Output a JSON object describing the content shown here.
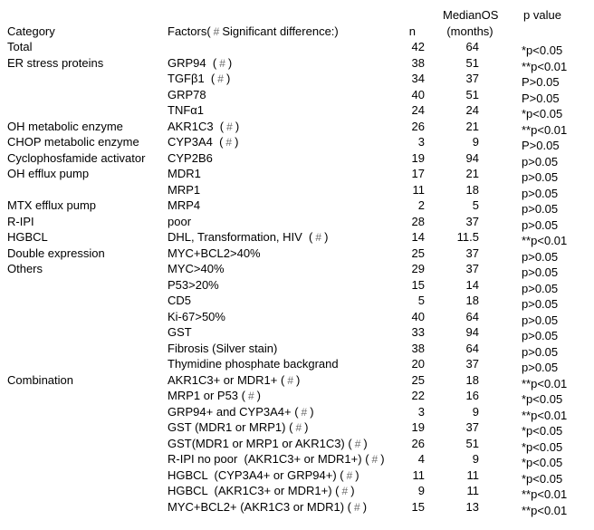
{
  "colors": {
    "background": "#ffffff",
    "text": "#000000",
    "hash_mark": "#6b6b6b"
  },
  "header": {
    "category": "Category",
    "factors": "Factors(#Significant difference:)",
    "n": "n",
    "median_line1": "MedianOS",
    "median_line2": "(months)",
    "p_value": "p value"
  },
  "rows": [
    {
      "category": "Total",
      "factors": "",
      "n": "42",
      "median": "64",
      "p": "*p<0.05"
    },
    {
      "category": "ER stress proteins",
      "factors": "GRP94  (#)",
      "n": "38",
      "median": "51",
      "p": "**p<0.01"
    },
    {
      "category": "",
      "factors": "TGFβ1  (#)",
      "n": "34",
      "median": "37",
      "p": "P>0.05"
    },
    {
      "category": "",
      "factors": "GRP78",
      "n": "40",
      "median": "51",
      "p": "P>0.05"
    },
    {
      "category": "",
      "factors": "TNFα1",
      "n": "24",
      "median": "24",
      "p": "*p<0.05"
    },
    {
      "category": "OH metabolic enzyme",
      "factors": "AKR1C3  (#)",
      "n": "26",
      "median": "21",
      "p": "**p<0.01"
    },
    {
      "category": "CHOP metabolic enzyme",
      "factors": "CYP3A4  (#)",
      "n": "3",
      "median": "9",
      "p": "P>0.05"
    },
    {
      "category": "Cyclophosfamide activator",
      "factors": "CYP2B6",
      "n": "19",
      "median": "94",
      "p": "p>0.05"
    },
    {
      "category": "OH efflux pump",
      "factors": "MDR1",
      "n": "17",
      "median": "21",
      "p": "p>0.05"
    },
    {
      "category": "",
      "factors": "MRP1",
      "n": "11",
      "median": "18",
      "p": "p>0.05"
    },
    {
      "category": "MTX efflux pump",
      "factors": "MRP4",
      "n": "2",
      "median": "5",
      "p": "p>0.05"
    },
    {
      "category": "R-IPI",
      "factors": "poor",
      "n": "28",
      "median": "37",
      "p": "p>0.05"
    },
    {
      "category": "HGBCL",
      "factors": "DHL, Transformation, HIV  (#)",
      "n": "14",
      "median": "11.5",
      "p": "**p<0.01"
    },
    {
      "category": "Double expression",
      "factors": "MYC+BCL2>40%",
      "n": "25",
      "median": "37",
      "p": "p>0.05"
    },
    {
      "category": "Others",
      "factors": "MYC>40%",
      "n": "29",
      "median": "37",
      "p": "p>0.05"
    },
    {
      "category": "",
      "factors": "P53>20%",
      "n": "15",
      "median": "14",
      "p": "p>0.05"
    },
    {
      "category": "",
      "factors": "CD5",
      "n": "5",
      "median": "18",
      "p": "p>0.05"
    },
    {
      "category": "",
      "factors": "Ki-67>50%",
      "n": "40",
      "median": "64",
      "p": "p>0.05"
    },
    {
      "category": "",
      "factors": "GST",
      "n": "33",
      "median": "94",
      "p": "p>0.05"
    },
    {
      "category": "",
      "factors": "Fibrosis (Silver stain)",
      "n": "38",
      "median": "64",
      "p": "p>0.05"
    },
    {
      "category": "",
      "factors": "Thymidine phosphate backgrand",
      "n": "20",
      "median": "37",
      "p": "p>0.05"
    },
    {
      "category": "Combination",
      "factors": "AKR1C3+ or MDR1+ (#)",
      "n": "25",
      "median": "18",
      "p": "**p<0.01"
    },
    {
      "category": "",
      "factors": "MRP1 or P53 (#)",
      "n": "22",
      "median": "16",
      "p": "*p<0.05"
    },
    {
      "category": "",
      "factors": "GRP94+ and CYP3A4+ (#)",
      "n": "3",
      "median": "9",
      "p": "**p<0.01"
    },
    {
      "category": "",
      "factors": "GST (MDR1 or MRP1) (#)",
      "n": "19",
      "median": "37",
      "p": "*p<0.05"
    },
    {
      "category": "",
      "factors": "GST(MDR1 or MRP1 or AKR1C3) (#)",
      "n": "26",
      "median": "51",
      "p": "*p<0.05"
    },
    {
      "category": "",
      "factors": "R-IPI no poor  (AKR1C3+ or MDR1+) (#)",
      "n": "4",
      "median": "9",
      "p": "*p<0.05"
    },
    {
      "category": "",
      "factors": "HGBCL  (CYP3A4+ or GRP94+) (#)",
      "n": "11",
      "median": "11",
      "p": "*p<0.05"
    },
    {
      "category": "",
      "factors": "HGBCL  (AKR1C3+ or MDR1+) (#)",
      "n": "9",
      "median": "11",
      "p": "**p<0.01"
    },
    {
      "category": "",
      "factors": "MYC+BCL2+ (AKR1C3 or MDR1) (#)",
      "n": "15",
      "median": "13",
      "p": "**p<0.01"
    }
  ]
}
